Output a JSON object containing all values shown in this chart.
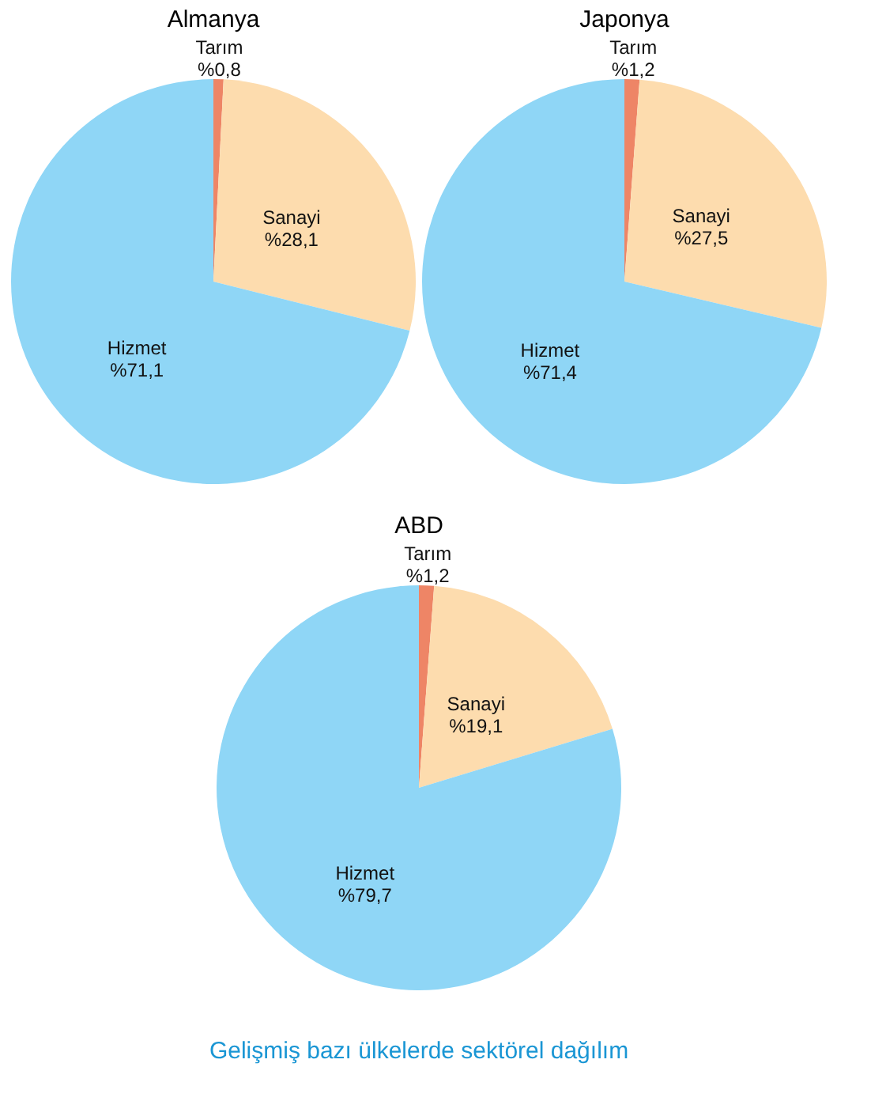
{
  "chart_data": [
    {
      "type": "pie",
      "title": "Almanya",
      "categories": [
        "Tarım",
        "Sanayi",
        "Hizmet"
      ],
      "values": [
        0.8,
        28.1,
        71.1
      ],
      "value_labels": [
        "%0,8",
        "%28,1",
        "%71,1"
      ],
      "colors": [
        "#ee8566",
        "#fddcae",
        "#8fd6f6"
      ]
    },
    {
      "type": "pie",
      "title": "Japonya",
      "categories": [
        "Tarım",
        "Sanayi",
        "Hizmet"
      ],
      "values": [
        1.2,
        27.5,
        71.4
      ],
      "value_labels": [
        "%1,2",
        "%27,5",
        "%71,4"
      ],
      "colors": [
        "#ee8566",
        "#fddcae",
        "#8fd6f6"
      ]
    },
    {
      "type": "pie",
      "title": "ABD",
      "categories": [
        "Tarım",
        "Sanayi",
        "Hizmet"
      ],
      "values": [
        1.2,
        19.1,
        79.7
      ],
      "value_labels": [
        "%1,2",
        "%19,1",
        "%79,7"
      ],
      "colors": [
        "#ee8566",
        "#fddcae",
        "#8fd6f6"
      ],
      "annotations": [
        "Gelişmiş bazı ülkelerde sektörel dağılım"
      ]
    }
  ]
}
